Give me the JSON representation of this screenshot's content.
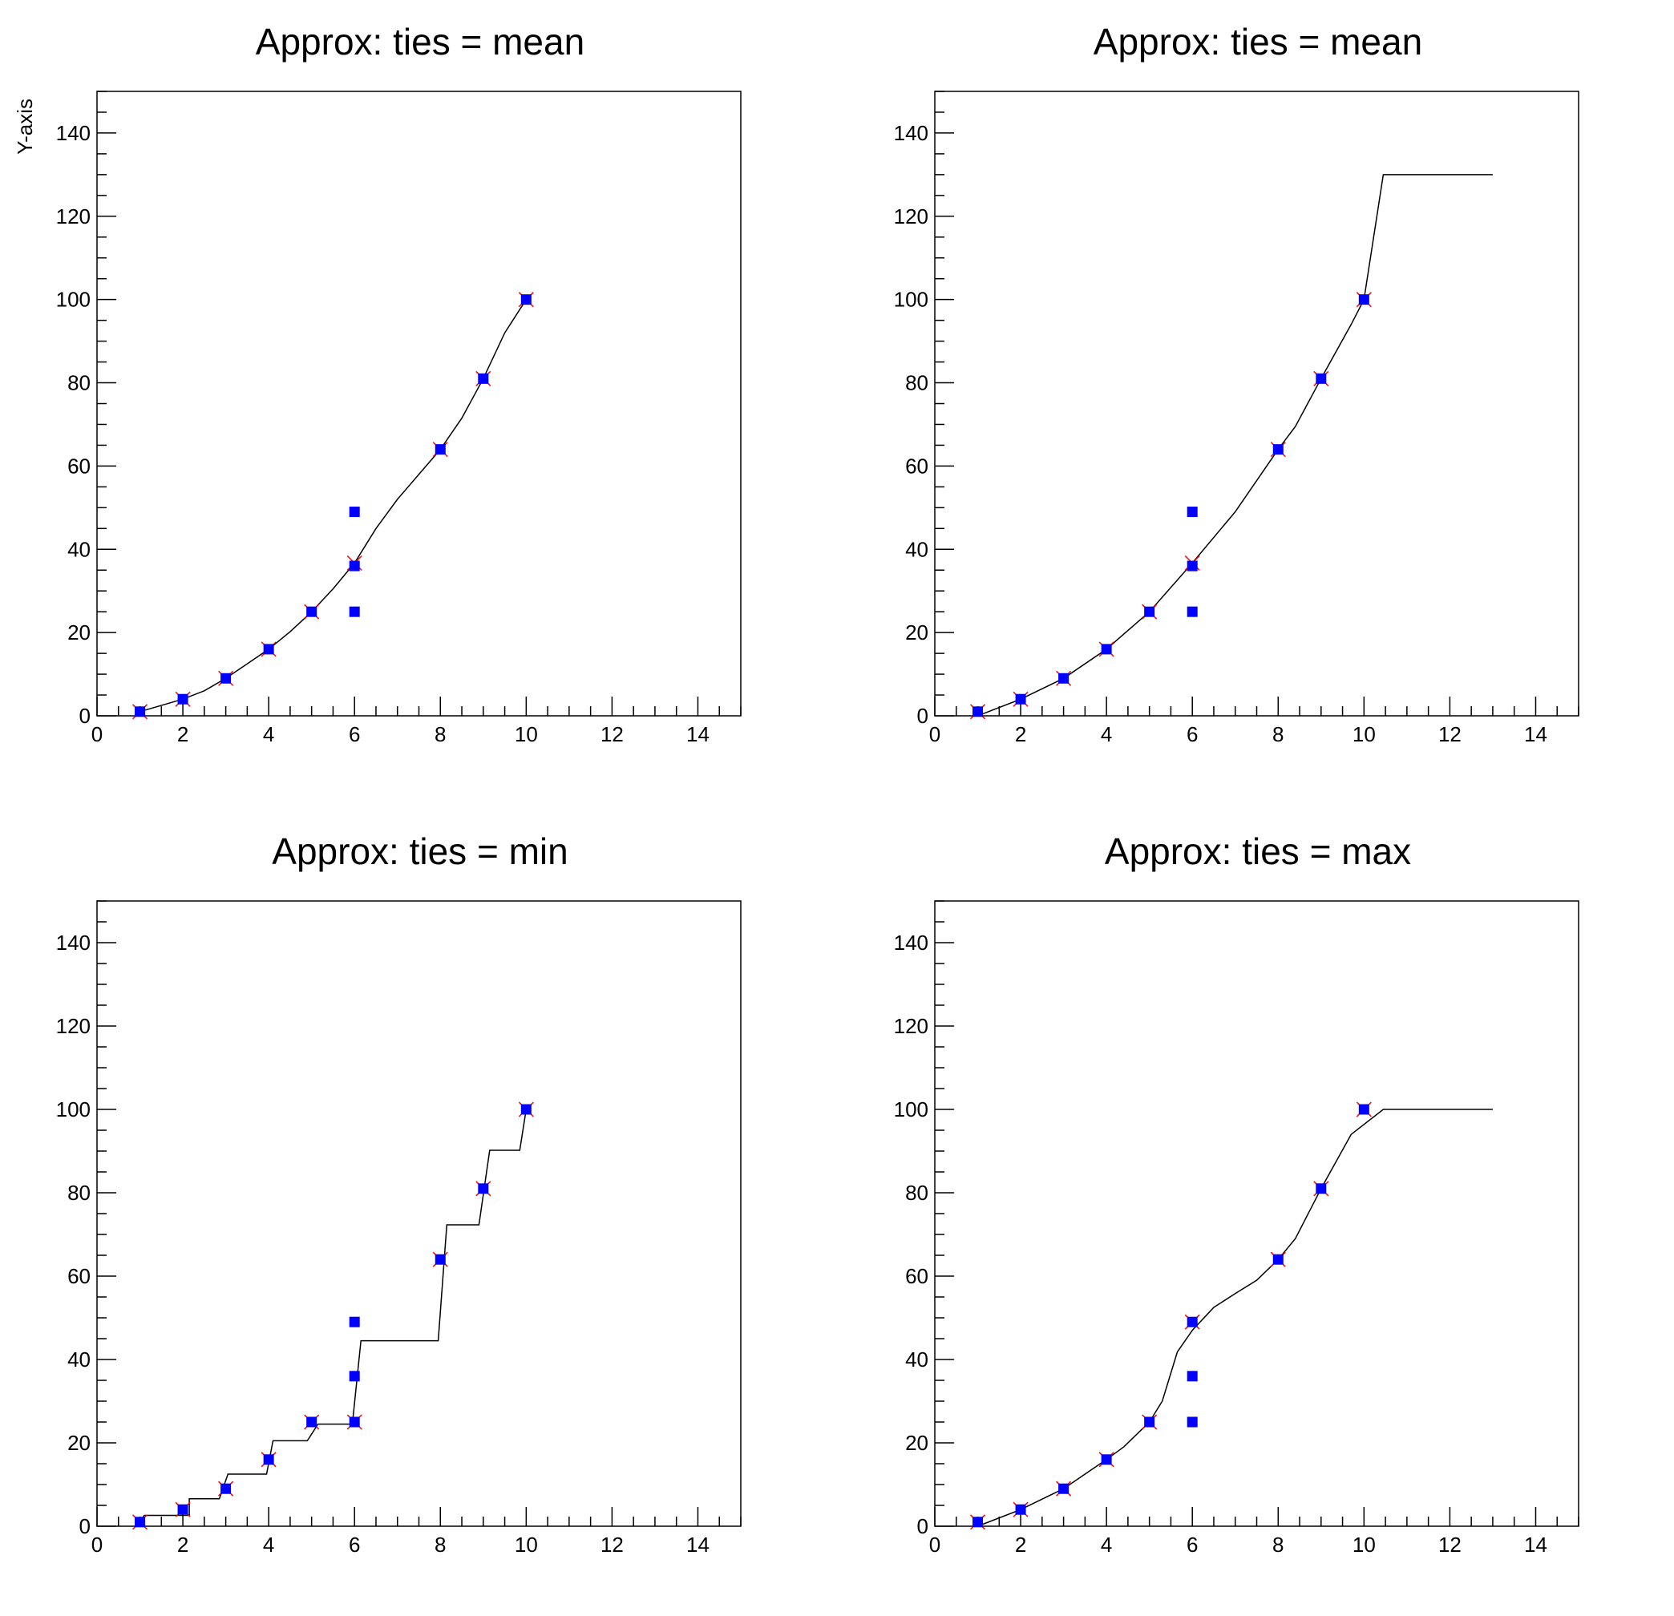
{
  "colors": {
    "data_marker": "#0000ff",
    "approx_marker": "#ff0000",
    "approx_line": "#000000",
    "frame": "#000000",
    "background": "#ffffff"
  },
  "chart_data": [
    {
      "type": "scatter",
      "title": "Approx: ties = mean",
      "ylabel": "Y-axis",
      "xlim": [
        0,
        15
      ],
      "ylim": [
        0,
        150
      ],
      "x_ticks": [
        0,
        2,
        4,
        6,
        8,
        10,
        12,
        14
      ],
      "y_ticks": [
        0,
        20,
        40,
        60,
        80,
        100,
        120,
        140
      ],
      "grid": false,
      "series": [
        {
          "style": "markers",
          "marker": "filled-square",
          "color": "#0000ff",
          "points": [
            [
              1,
              1
            ],
            [
              2,
              4
            ],
            [
              3,
              9
            ],
            [
              4,
              16
            ],
            [
              5,
              25
            ],
            [
              6,
              25
            ],
            [
              6,
              36
            ],
            [
              6,
              49
            ],
            [
              8,
              64
            ],
            [
              9,
              81
            ],
            [
              10,
              100
            ]
          ]
        },
        {
          "style": "markers",
          "marker": "x-cross",
          "color": "#ff0000",
          "points": [
            [
              1,
              1
            ],
            [
              2,
              4
            ],
            [
              3,
              9
            ],
            [
              4,
              16
            ],
            [
              5,
              25
            ],
            [
              6,
              36.7
            ],
            [
              8,
              64
            ],
            [
              9,
              81
            ],
            [
              10,
              100
            ]
          ]
        },
        {
          "style": "line",
          "color": "#000000",
          "points": [
            [
              1,
              1
            ],
            [
              2,
              4
            ],
            [
              2.5,
              6
            ],
            [
              3,
              9
            ],
            [
              3.5,
              12.5
            ],
            [
              4,
              16
            ],
            [
              4.5,
              20.2
            ],
            [
              5,
              25
            ],
            [
              5.5,
              30.5
            ],
            [
              6,
              36.7
            ],
            [
              6.5,
              45
            ],
            [
              7,
              52
            ],
            [
              7.5,
              58
            ],
            [
              8,
              64
            ],
            [
              8.5,
              71.5
            ],
            [
              9,
              81
            ],
            [
              9.5,
              92
            ],
            [
              10,
              100
            ]
          ]
        }
      ]
    },
    {
      "type": "scatter",
      "title": "Approx: ties = mean",
      "xlim": [
        0,
        15
      ],
      "ylim": [
        0,
        150
      ],
      "x_ticks": [
        0,
        2,
        4,
        6,
        8,
        10,
        12,
        14
      ],
      "y_ticks": [
        0,
        20,
        40,
        60,
        80,
        100,
        120,
        140
      ],
      "grid": false,
      "series": [
        {
          "style": "markers",
          "marker": "filled-square",
          "color": "#0000ff",
          "points": [
            [
              1,
              1
            ],
            [
              2,
              4
            ],
            [
              3,
              9
            ],
            [
              4,
              16
            ],
            [
              5,
              25
            ],
            [
              6,
              25
            ],
            [
              6,
              36
            ],
            [
              6,
              49
            ],
            [
              8,
              64
            ],
            [
              9,
              81
            ],
            [
              10,
              100
            ]
          ]
        },
        {
          "style": "markers",
          "marker": "x-cross",
          "color": "#ff0000",
          "points": [
            [
              1,
              1
            ],
            [
              2,
              4
            ],
            [
              3,
              9
            ],
            [
              4,
              16
            ],
            [
              5,
              25
            ],
            [
              6,
              36.7
            ],
            [
              8,
              64
            ],
            [
              9,
              81
            ],
            [
              10,
              100
            ]
          ]
        },
        {
          "style": "line",
          "color": "#000000",
          "points": [
            [
              1,
              0
            ],
            [
              2,
              4
            ],
            [
              3,
              9
            ],
            [
              4,
              16
            ],
            [
              5,
              25
            ],
            [
              6,
              36.7
            ],
            [
              7,
              49
            ],
            [
              8,
              64
            ],
            [
              8.4,
              69.5
            ],
            [
              9,
              81
            ],
            [
              9.7,
              94
            ],
            [
              10,
              100
            ],
            [
              10.45,
              130
            ],
            [
              13,
              130
            ]
          ]
        }
      ]
    },
    {
      "type": "scatter",
      "title": "Approx: ties = min",
      "xlim": [
        0,
        15
      ],
      "ylim": [
        0,
        150
      ],
      "x_ticks": [
        0,
        2,
        4,
        6,
        8,
        10,
        12,
        14
      ],
      "y_ticks": [
        0,
        20,
        40,
        60,
        80,
        100,
        120,
        140
      ],
      "grid": false,
      "series": [
        {
          "style": "markers",
          "marker": "filled-square",
          "color": "#0000ff",
          "points": [
            [
              1,
              1
            ],
            [
              2,
              4
            ],
            [
              3,
              9
            ],
            [
              4,
              16
            ],
            [
              5,
              25
            ],
            [
              6,
              25
            ],
            [
              6,
              36
            ],
            [
              6,
              49
            ],
            [
              8,
              64
            ],
            [
              9,
              81
            ],
            [
              10,
              100
            ]
          ]
        },
        {
          "style": "markers",
          "marker": "x-cross",
          "color": "#ff0000",
          "points": [
            [
              1,
              1
            ],
            [
              2,
              4
            ],
            [
              3,
              9
            ],
            [
              4,
              16
            ],
            [
              5,
              25
            ],
            [
              6,
              25
            ],
            [
              8,
              64
            ],
            [
              9,
              81
            ],
            [
              10,
              100
            ]
          ]
        },
        {
          "style": "line",
          "color": "#000000",
          "points": [
            [
              1,
              1
            ],
            [
              1.1,
              2.6
            ],
            [
              2.15,
              2.6
            ],
            [
              2.15,
              6.6
            ],
            [
              2.85,
              6.6
            ],
            [
              3.05,
              12.5
            ],
            [
              3.95,
              12.5
            ],
            [
              4.1,
              20.5
            ],
            [
              4.9,
              20.5
            ],
            [
              5.15,
              24.5
            ],
            [
              5.95,
              24.5
            ],
            [
              6.15,
              44.5
            ],
            [
              7.95,
              44.5
            ],
            [
              8.15,
              72.3
            ],
            [
              8.9,
              72.3
            ],
            [
              9.15,
              90.2
            ],
            [
              9.85,
              90.2
            ],
            [
              10,
              100
            ]
          ]
        }
      ]
    },
    {
      "type": "scatter",
      "title": "Approx: ties = max",
      "xlim": [
        0,
        15
      ],
      "ylim": [
        0,
        150
      ],
      "x_ticks": [
        0,
        2,
        4,
        6,
        8,
        10,
        12,
        14
      ],
      "y_ticks": [
        0,
        20,
        40,
        60,
        80,
        100,
        120,
        140
      ],
      "grid": false,
      "series": [
        {
          "style": "markers",
          "marker": "filled-square",
          "color": "#0000ff",
          "points": [
            [
              1,
              1
            ],
            [
              2,
              4
            ],
            [
              3,
              9
            ],
            [
              4,
              16
            ],
            [
              5,
              25
            ],
            [
              6,
              25
            ],
            [
              6,
              36
            ],
            [
              6,
              49
            ],
            [
              8,
              64
            ],
            [
              9,
              81
            ],
            [
              10,
              100
            ]
          ]
        },
        {
          "style": "markers",
          "marker": "x-cross",
          "color": "#ff0000",
          "points": [
            [
              1,
              1
            ],
            [
              2,
              4
            ],
            [
              3,
              9
            ],
            [
              4,
              16
            ],
            [
              5,
              25
            ],
            [
              6,
              49
            ],
            [
              8,
              64
            ],
            [
              9,
              81
            ],
            [
              10,
              100
            ]
          ]
        },
        {
          "style": "line",
          "color": "#000000",
          "points": [
            [
              1,
              0
            ],
            [
              2,
              4
            ],
            [
              3,
              9
            ],
            [
              4,
              16
            ],
            [
              4.4,
              19
            ],
            [
              5,
              25
            ],
            [
              5.3,
              30
            ],
            [
              5.65,
              41.8
            ],
            [
              6,
              47
            ],
            [
              6.5,
              52.5
            ],
            [
              7,
              55.8
            ],
            [
              7.5,
              59
            ],
            [
              8,
              64
            ],
            [
              8.4,
              69
            ],
            [
              9,
              81
            ],
            [
              9.7,
              94
            ],
            [
              10.45,
              100
            ],
            [
              13,
              100
            ]
          ]
        }
      ]
    }
  ]
}
